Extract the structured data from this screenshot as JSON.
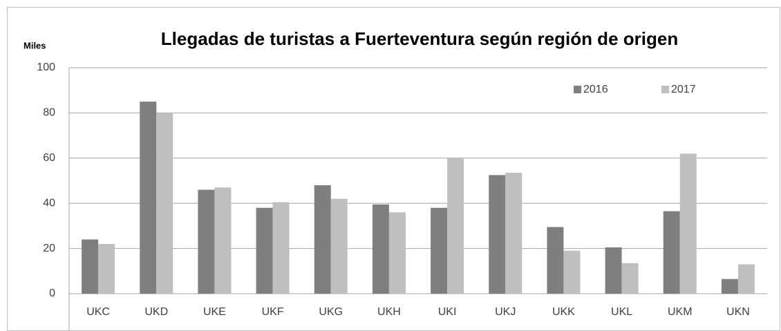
{
  "chart_data": {
    "type": "bar",
    "title": "Llegadas de turistas a Fuerteventura según región de origen",
    "y_label": "Miles",
    "categories": [
      "UKC",
      "UKD",
      "UKE",
      "UKF",
      "UKG",
      "UKH",
      "UKI",
      "UKJ",
      "UKK",
      "UKL",
      "UKM",
      "UKN"
    ],
    "series": [
      {
        "name": "2016",
        "color": "#7f7f7f",
        "values": [
          24,
          85,
          46,
          38,
          48,
          39.5,
          38,
          52.5,
          29.5,
          20.5,
          36.5,
          6.5
        ]
      },
      {
        "name": "2017",
        "color": "#bfbfbf",
        "values": [
          22,
          80,
          47,
          40.5,
          42,
          36,
          60,
          53.5,
          19,
          13.5,
          62,
          13
        ]
      }
    ],
    "ylim": [
      0,
      100
    ],
    "yticks": [
      0,
      20,
      40,
      60,
      80,
      100
    ],
    "grid": true,
    "legend": "top-right"
  }
}
